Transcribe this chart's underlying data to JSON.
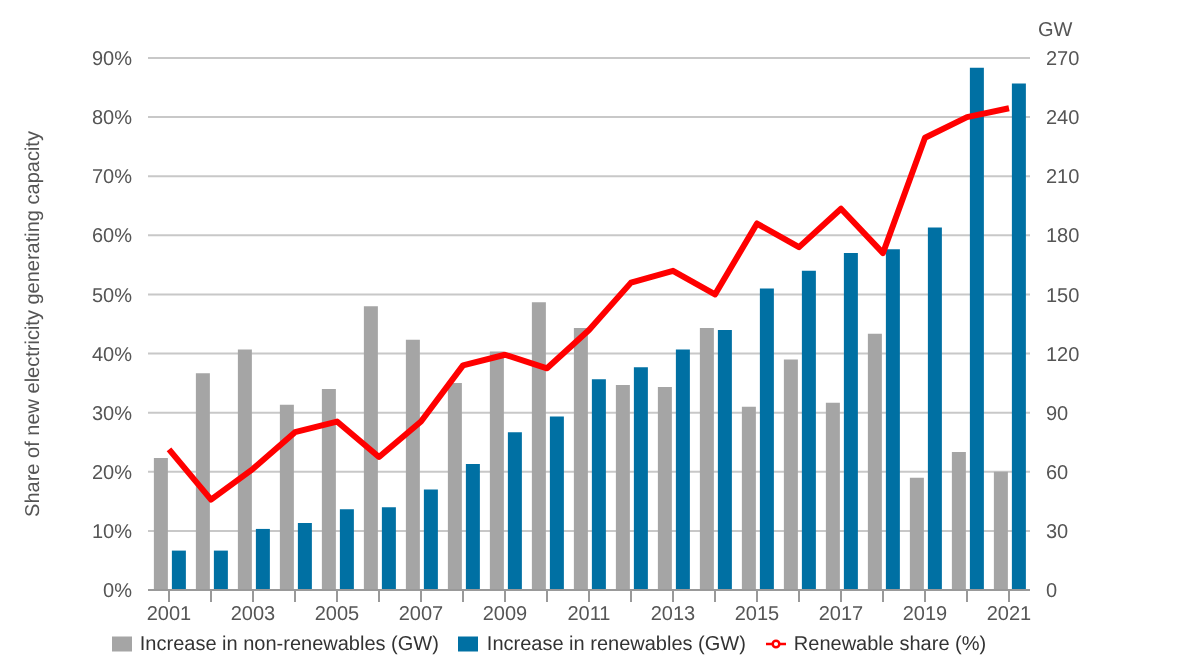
{
  "chart_data": {
    "type": "bar",
    "ylabel": "Share of new electricity generating capacity",
    "y2label": "GW",
    "categories": [
      "2001",
      null,
      "2003",
      null,
      "2005",
      null,
      "2007",
      null,
      "2009",
      null,
      "2011",
      null,
      "2013",
      null,
      "2015",
      null,
      "2017",
      null,
      "2019",
      null,
      "2021"
    ],
    "series": [
      {
        "name": "Increase in non-renewables (GW)",
        "axis": "y2",
        "color": "#a5a5a5",
        "values": [
          67,
          110,
          122,
          94,
          102,
          144,
          127,
          105,
          121,
          146,
          133,
          104,
          103,
          133,
          93,
          117,
          95,
          130,
          57,
          70,
          60
        ]
      },
      {
        "name": "Increase in renewables (GW)",
        "axis": "y2",
        "color": "#0070a3",
        "values": [
          20,
          20,
          31,
          34,
          41,
          42,
          51,
          64,
          80,
          88,
          107,
          113,
          122,
          132,
          153,
          162,
          171,
          173,
          184,
          265,
          257
        ]
      },
      {
        "name": "Renewable share (%)",
        "type": "line",
        "axis": "y",
        "color": "#ff0000",
        "values": [
          23.8,
          15.3,
          20.5,
          26.7,
          28.5,
          22.5,
          28.5,
          38,
          39.8,
          37.5,
          44,
          52,
          54,
          50,
          62,
          58,
          64.5,
          57,
          76.5,
          80,
          81.5
        ]
      }
    ],
    "ylim": [
      0,
      90
    ],
    "yticks": [
      {
        "value": 0,
        "label": "0%"
      },
      {
        "value": 10,
        "label": "10%"
      },
      {
        "value": 20,
        "label": "20%"
      },
      {
        "value": 30,
        "label": "30%"
      },
      {
        "value": 40,
        "label": "40%"
      },
      {
        "value": 50,
        "label": "50%"
      },
      {
        "value": 60,
        "label": "60%"
      },
      {
        "value": 70,
        "label": "70%"
      },
      {
        "value": 80,
        "label": "80%"
      },
      {
        "value": 90,
        "label": "90%"
      }
    ],
    "y2lim": [
      0,
      270
    ],
    "y2ticks": [
      0,
      30,
      60,
      90,
      120,
      150,
      180,
      210,
      240,
      270
    ],
    "grid": "y",
    "legend": "bottom",
    "marker": "none",
    "line_style": "solid"
  }
}
